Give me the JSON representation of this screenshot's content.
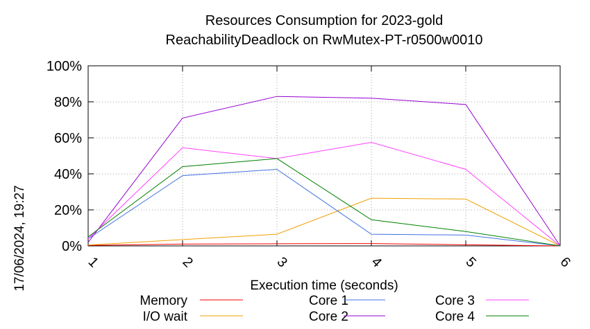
{
  "chart_data": {
    "type": "line",
    "title_lines": [
      "Resources Consumption for 2023-gold",
      "ReachabilityDeadlock on RwMutex-PT-r0500w0010"
    ],
    "xlabel": "Execution time (seconds)",
    "ylabel": "",
    "side_stamp": "17/06/2024, 19:27",
    "x": [
      1,
      2,
      3,
      4,
      5,
      6
    ],
    "x_tick_labels": [
      "1",
      "2",
      "3",
      "4",
      "5",
      "6"
    ],
    "xlim": [
      1,
      6
    ],
    "ylim": [
      0,
      100
    ],
    "y_ticks": [
      0,
      20,
      40,
      60,
      80,
      100
    ],
    "y_tick_labels": [
      "0%",
      "20%",
      "40%",
      "60%",
      "80%",
      "100%"
    ],
    "grid": true,
    "legend_position": "bottom",
    "series": [
      {
        "name": "Memory",
        "color": "#ff0000",
        "values": [
          0.3,
          1.0,
          1.2,
          1.3,
          0.6,
          0.0
        ]
      },
      {
        "name": "I/O wait",
        "color": "#f0a000",
        "values": [
          0.5,
          3.5,
          6.5,
          26.5,
          26.0,
          0.0
        ]
      },
      {
        "name": "Core 1",
        "color": "#4070e0",
        "values": [
          4.0,
          39.0,
          42.5,
          6.5,
          6.0,
          0.0
        ]
      },
      {
        "name": "Core 2",
        "color": "#9400d3",
        "values": [
          2.0,
          71.0,
          83.0,
          82.0,
          78.5,
          0.0
        ]
      },
      {
        "name": "Core 3",
        "color": "#ff40ff",
        "values": [
          4.0,
          54.5,
          48.5,
          57.5,
          42.5,
          0.0
        ]
      },
      {
        "name": "Core 4",
        "color": "#008000",
        "values": [
          5.0,
          44.0,
          48.5,
          14.5,
          8.0,
          0.0
        ]
      }
    ]
  }
}
